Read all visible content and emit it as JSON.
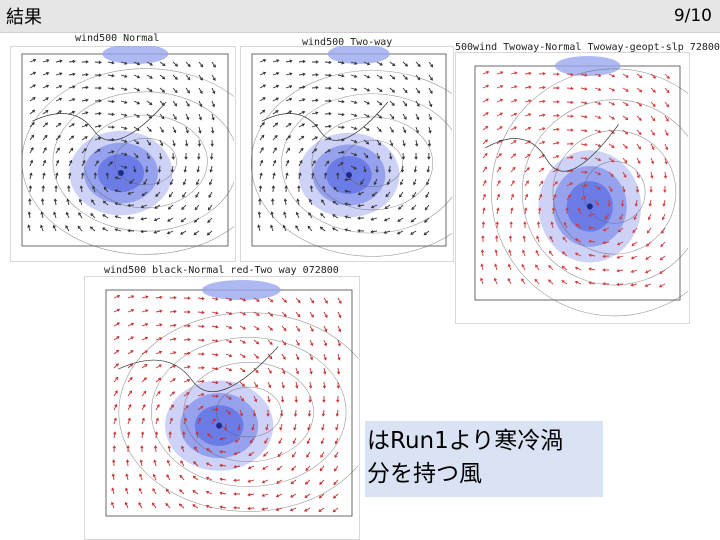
{
  "header": {
    "title": "結果",
    "page": "9/10"
  },
  "panels": [
    {
      "id": "normal",
      "title": "wind500 Normal",
      "arrow_color": "#333333"
    },
    {
      "id": "twoway",
      "title": "wind500 Two-way",
      "arrow_color": "#333333"
    },
    {
      "id": "geopt",
      "title": "500wind Twoway-Normal Twoway-geopt-slp 72800",
      "arrow_color": "#d23a3a"
    },
    {
      "id": "diff",
      "title": "wind500 black-Normal red-Two way 072800",
      "arrow_color": "#c83030"
    }
  ],
  "caption": {
    "line1": "はRun1より寒冷渦",
    "line2": "分を持つ風"
  },
  "colors": {
    "vortex": "#4a5fe0",
    "topbar": "#e6e6e6",
    "caption_bg": "#dae3f3"
  }
}
